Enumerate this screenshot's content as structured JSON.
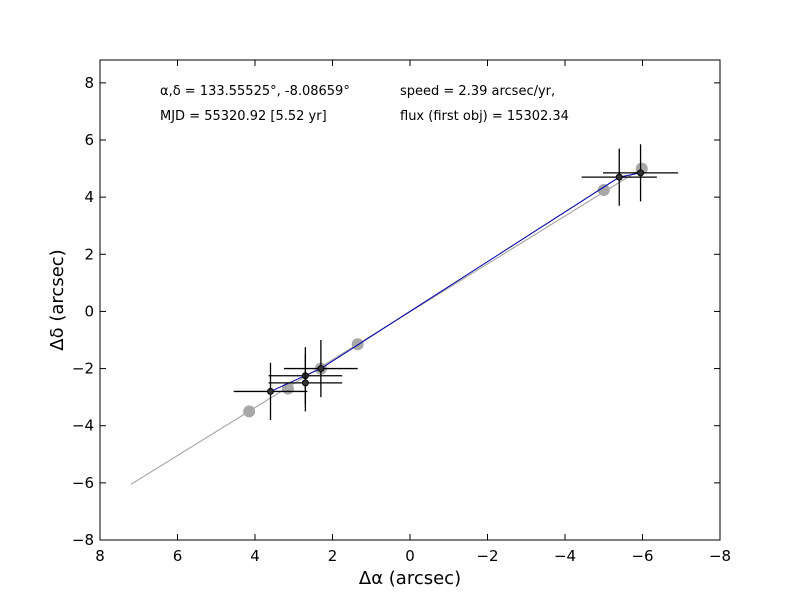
{
  "chart_data": {
    "type": "scatter",
    "xlabel": "Δα (arcsec)",
    "ylabel": "Δδ (arcsec)",
    "xlim": [
      8,
      -8
    ],
    "ylim": [
      -8,
      8.8
    ],
    "x_ticks": [
      8,
      6,
      4,
      2,
      0,
      -2,
      -4,
      -6,
      -8
    ],
    "x_tick_labels": [
      "8",
      "6",
      "4",
      "2",
      "0",
      "−2",
      "−4",
      "−6",
      "−8"
    ],
    "y_ticks": [
      -8,
      -6,
      -4,
      -2,
      0,
      2,
      4,
      6,
      8
    ],
    "y_tick_labels": [
      "−8",
      "−6",
      "−4",
      "−2",
      "0",
      "2",
      "4",
      "6",
      "8"
    ],
    "grid": false,
    "annotations": [
      "α,δ = 133.55525°, -8.08659°",
      "speed = 2.39 arcsec/yr,",
      "MJD = 55320.92 [5.52 yr]",
      "flux (first obj) = 15302.34"
    ],
    "colors": {
      "model_line": "#a0a0a0",
      "fit_line": "#0000aa",
      "model_points": "#a8a8a8",
      "observed_points": "#000000"
    },
    "series": [
      {
        "type": "line",
        "x": [
          7.2,
          -5.98
        ],
        "y": [
          -6.05,
          5.0
        ]
      },
      {
        "type": "scatter",
        "x": [
          4.15,
          3.15,
          2.3,
          1.35,
          -5.0,
          -5.98
        ],
        "y": [
          -3.5,
          -2.7,
          -2.0,
          -1.15,
          4.25,
          5.0
        ]
      },
      {
        "type": "line",
        "x": [
          3.6,
          2.3,
          -5.4,
          -5.95
        ],
        "y": [
          -2.8,
          -2.0,
          4.7,
          4.85
        ]
      },
      {
        "type": "errorbar",
        "x": [
          3.6,
          2.7,
          2.7,
          2.3,
          -5.4,
          -5.95
        ],
        "y": [
          -2.8,
          -2.25,
          -2.5,
          -2.0,
          4.7,
          4.85
        ],
        "xerr": [
          0.95,
          0.95,
          0.95,
          0.95,
          0.97,
          0.97
        ],
        "yerr": [
          1.0,
          1.0,
          1.0,
          1.0,
          1.0,
          1.0
        ]
      }
    ]
  }
}
